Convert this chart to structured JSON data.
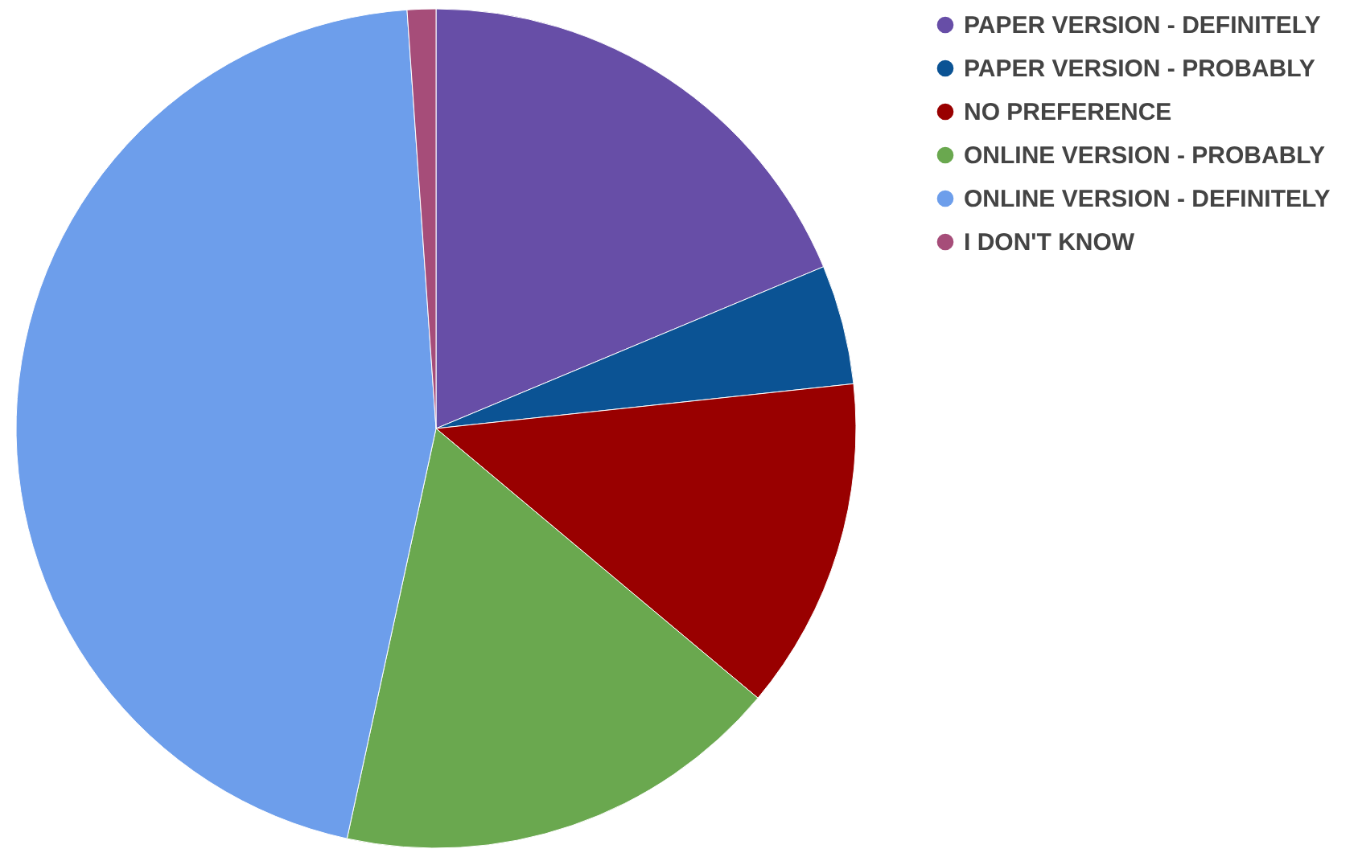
{
  "chart_data": {
    "type": "pie",
    "categories": [
      "PAPER VERSION - DEFINITELY",
      "PAPER VERSION - PROBABLY",
      "NO PREFERENCE",
      "ONLINE VERSION - PROBABLY",
      "ONLINE VERSION - DEFINITELY",
      "I DON'T KNOW"
    ],
    "values": [
      18.7,
      4.6,
      12.8,
      17.3,
      45.5,
      1.1
    ],
    "colors": [
      "#674ea7",
      "#0b5394",
      "#990000",
      "#6aa84f",
      "#6d9eeb",
      "#a64d79"
    ],
    "legend": "top right"
  }
}
